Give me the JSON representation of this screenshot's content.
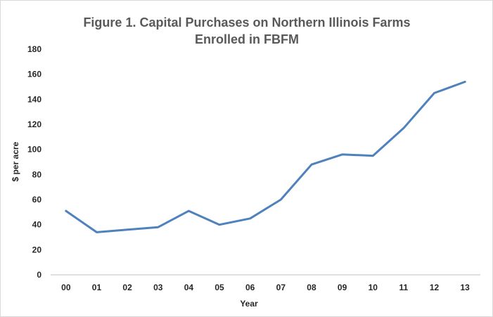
{
  "chart_data": {
    "type": "line",
    "title_lines": [
      "Figure 1.  Capital Purchases on Northern Illinois Farms",
      "Enrolled in FBFM"
    ],
    "xlabel": "Year",
    "ylabel": "$ per acre",
    "categories": [
      "00",
      "01",
      "02",
      "03",
      "04",
      "05",
      "06",
      "07",
      "08",
      "09",
      "10",
      "11",
      "12",
      "13"
    ],
    "series": [
      {
        "values": [
          51,
          34,
          36,
          38,
          51,
          40,
          45,
          60,
          88,
          96,
          95,
          117,
          145,
          154
        ],
        "color": "#4f81bd"
      }
    ],
    "ylim": [
      0,
      180
    ],
    "yticks": [
      0,
      20,
      40,
      60,
      80,
      100,
      120,
      140,
      160,
      180
    ],
    "grid": false,
    "legend": "none"
  }
}
